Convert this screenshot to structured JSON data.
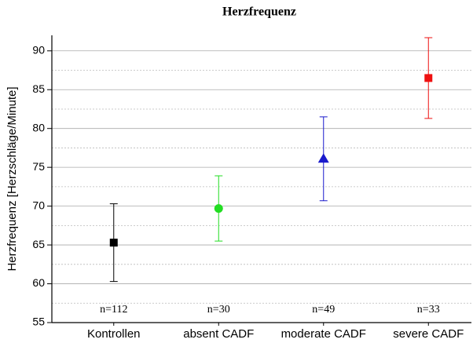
{
  "chart_data": {
    "type": "errorbar",
    "title": "Herzfrequenz",
    "ylabel": "Herzfrequenz [Herzschläge/Minute]",
    "categories": [
      "Kontrollen",
      "absent CADF",
      "moderate CADF",
      "severe CADF"
    ],
    "values": [
      65.3,
      69.7,
      76.1,
      86.5
    ],
    "errors": [
      5.0,
      4.2,
      5.4,
      5.2
    ],
    "colors": [
      "#000000",
      "#22dd22",
      "#1a1acc",
      "#ee1111"
    ],
    "markers": [
      "square",
      "circle",
      "triangle",
      "square"
    ],
    "annotations": [
      "n=112",
      "n=30",
      "n=49",
      "n=33"
    ],
    "ylim": [
      55,
      92
    ],
    "yticks": [
      55,
      60,
      65,
      70,
      75,
      80,
      85,
      90
    ],
    "yticks_minor": [
      57.5,
      62.5,
      67.5,
      72.5,
      77.5,
      82.5,
      87.5
    ],
    "grid": true
  }
}
